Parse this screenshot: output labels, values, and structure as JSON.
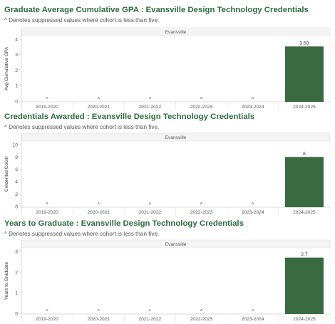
{
  "charts": [
    {
      "title": "Graduate Average Cumulative GPA : Evansville Design Technology Credentials",
      "subtitle": "^ Denotes suppressed values where cohort is less than five."
    },
    {
      "title": "Credentials Awarded : Evansville Design Technology Credentials",
      "subtitle": "^ Denotes suppressed values where cohort is less than five."
    },
    {
      "title": "Years to Graduate : Evansville Design Technology Credentials",
      "subtitle": "^ Denotes suppressed values where cohort is less than five."
    }
  ],
  "chart_data": [
    {
      "type": "bar",
      "title": "Graduate Average Cumulative GPA : Evansville Design Technology Credentials",
      "subtitle": "^ Denotes suppressed values where cohort is less than five.",
      "panel_header": "Evansville",
      "ylabel": "Avg Cumulative GPA",
      "xlabel": "",
      "categories": [
        "2019-2020",
        "2020-2021",
        "2021-2022",
        "2022-2023",
        "2023-2024",
        "2024-2025"
      ],
      "values": [
        null,
        null,
        null,
        null,
        null,
        3.53
      ],
      "value_labels": [
        "^",
        "^",
        "^",
        "^",
        "^",
        "3.53"
      ],
      "ylim": [
        0,
        4
      ],
      "yticks": [
        0,
        1,
        2,
        3,
        4
      ],
      "bar_color": "#3a6b40",
      "grid": false,
      "legend": "none"
    },
    {
      "type": "bar",
      "title": "Credentials Awarded : Evansville Design Technology Credentials",
      "subtitle": "^ Denotes suppressed values where cohort is less than five.",
      "panel_header": "Evansville",
      "ylabel": "Credential Count",
      "xlabel": "",
      "categories": [
        "2019-2020",
        "2020-2021",
        "2021-2022",
        "2022-2023",
        "2023-2024",
        "2024-2025"
      ],
      "values": [
        null,
        null,
        null,
        null,
        null,
        8
      ],
      "value_labels": [
        "^",
        "^",
        "^",
        "^",
        "^",
        "8"
      ],
      "ylim": [
        0,
        10
      ],
      "yticks": [
        0,
        2,
        4,
        6,
        8,
        10
      ],
      "bar_color": "#3a6b40",
      "grid": false,
      "legend": "none"
    },
    {
      "type": "bar",
      "title": "Years to Graduate : Evansville Design Technology Credentials",
      "subtitle": "^ Denotes suppressed values where cohort is less than five.",
      "panel_header": "Evansville",
      "ylabel": "Years to Graduate",
      "xlabel": "",
      "categories": [
        "2019-2020",
        "2020-2021",
        "2021-2022",
        "2022-2023",
        "2023-2024",
        "2024-2025"
      ],
      "values": [
        null,
        null,
        null,
        null,
        null,
        2.7
      ],
      "value_labels": [
        "^",
        "^",
        "^",
        "^",
        "^",
        "2.7"
      ],
      "ylim": [
        0,
        3
      ],
      "yticks": [
        0,
        1,
        2,
        3
      ],
      "bar_color": "#3a6b40",
      "grid": false,
      "legend": "none"
    }
  ]
}
